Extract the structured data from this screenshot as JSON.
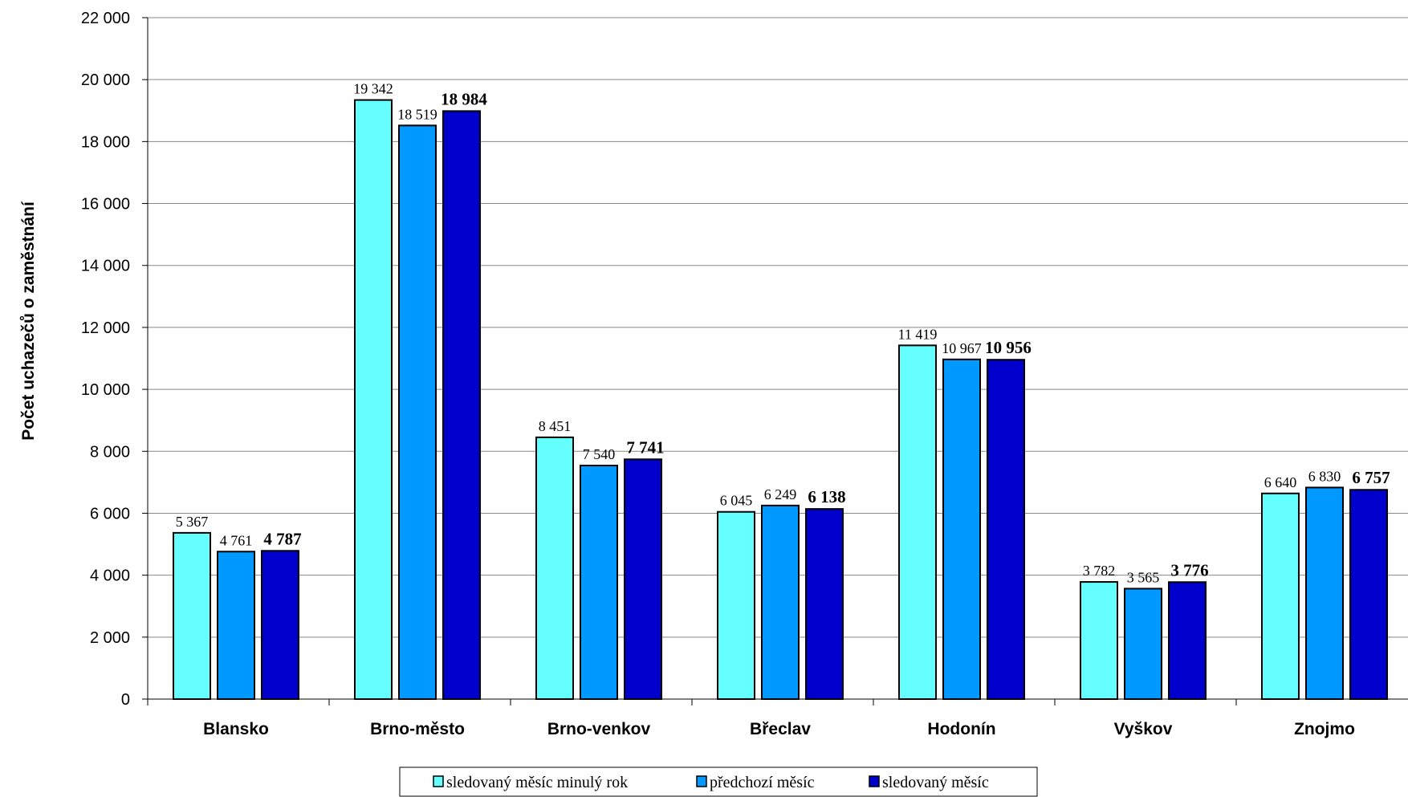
{
  "chart_data": {
    "type": "bar",
    "title": "",
    "xlabel": "",
    "ylabel": "Počet uchazečů o zaměstnání",
    "ylim": [
      0,
      22000
    ],
    "y_ticks": [
      0,
      2000,
      4000,
      6000,
      8000,
      10000,
      12000,
      14000,
      16000,
      18000,
      20000,
      22000
    ],
    "y_tick_labels": [
      "0",
      "2 000",
      "4 000",
      "6 000",
      "8 000",
      "10 000",
      "12 000",
      "14 000",
      "16 000",
      "18 000",
      "20 000",
      "22 000"
    ],
    "grid": true,
    "legend_position": "bottom",
    "categories": [
      "Blansko",
      "Brno-město",
      "Brno-venkov",
      "Břeclav",
      "Hodonín",
      "Vyškov",
      "Znojmo"
    ],
    "series": [
      {
        "name": "sledovaný měsíc minulý rok",
        "color": "#66FFFF",
        "bold_labels": false,
        "values": [
          5367,
          19342,
          8451,
          6045,
          11419,
          3782,
          6640
        ],
        "labels": [
          "5 367",
          "19 342",
          "8 451",
          "6 045",
          "11 419",
          "3 782",
          "6 640"
        ]
      },
      {
        "name": "předchozí měsíc",
        "color": "#0099FF",
        "bold_labels": false,
        "values": [
          4761,
          18519,
          7540,
          6249,
          10967,
          3565,
          6830
        ],
        "labels": [
          "4 761",
          "18 519",
          "7 540",
          "6 249",
          "10 967",
          "3 565",
          "6 830"
        ]
      },
      {
        "name": "sledovaný měsíc",
        "color": "#0000CC",
        "bold_labels": true,
        "values": [
          4787,
          18984,
          7741,
          6138,
          10956,
          3776,
          6757
        ],
        "labels": [
          "4 787",
          "18 984",
          "7 741",
          "6 138",
          "10 956",
          "3 776",
          "6 757"
        ]
      }
    ]
  }
}
